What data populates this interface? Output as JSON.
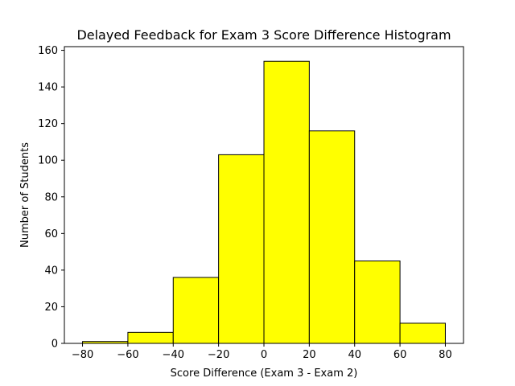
{
  "chart_data": {
    "type": "bar",
    "histogram": true,
    "title": "Delayed Feedback for Exam 3 Score Difference Histogram",
    "xlabel": "Score Difference (Exam 3 - Exam 2)",
    "ylabel": "Number of Students",
    "bins": [
      {
        "start": -80,
        "end": -60,
        "count": 1
      },
      {
        "start": -60,
        "end": -40,
        "count": 6
      },
      {
        "start": -40,
        "end": -20,
        "count": 36
      },
      {
        "start": -20,
        "end": 0,
        "count": 103
      },
      {
        "start": 0,
        "end": 20,
        "count": 154
      },
      {
        "start": 20,
        "end": 40,
        "count": 116
      },
      {
        "start": 40,
        "end": 60,
        "count": 45
      },
      {
        "start": 60,
        "end": 80,
        "count": 11
      }
    ],
    "xlim": [
      -88,
      88
    ],
    "ylim": [
      0,
      162
    ],
    "xticks": [
      -80,
      -60,
      -40,
      -20,
      0,
      20,
      40,
      60,
      80
    ],
    "yticks": [
      0,
      20,
      40,
      60,
      80,
      100,
      120,
      140,
      160
    ],
    "bar_color": "#ffff00",
    "edge_color": "#000000",
    "grid": false,
    "legend": "none"
  }
}
